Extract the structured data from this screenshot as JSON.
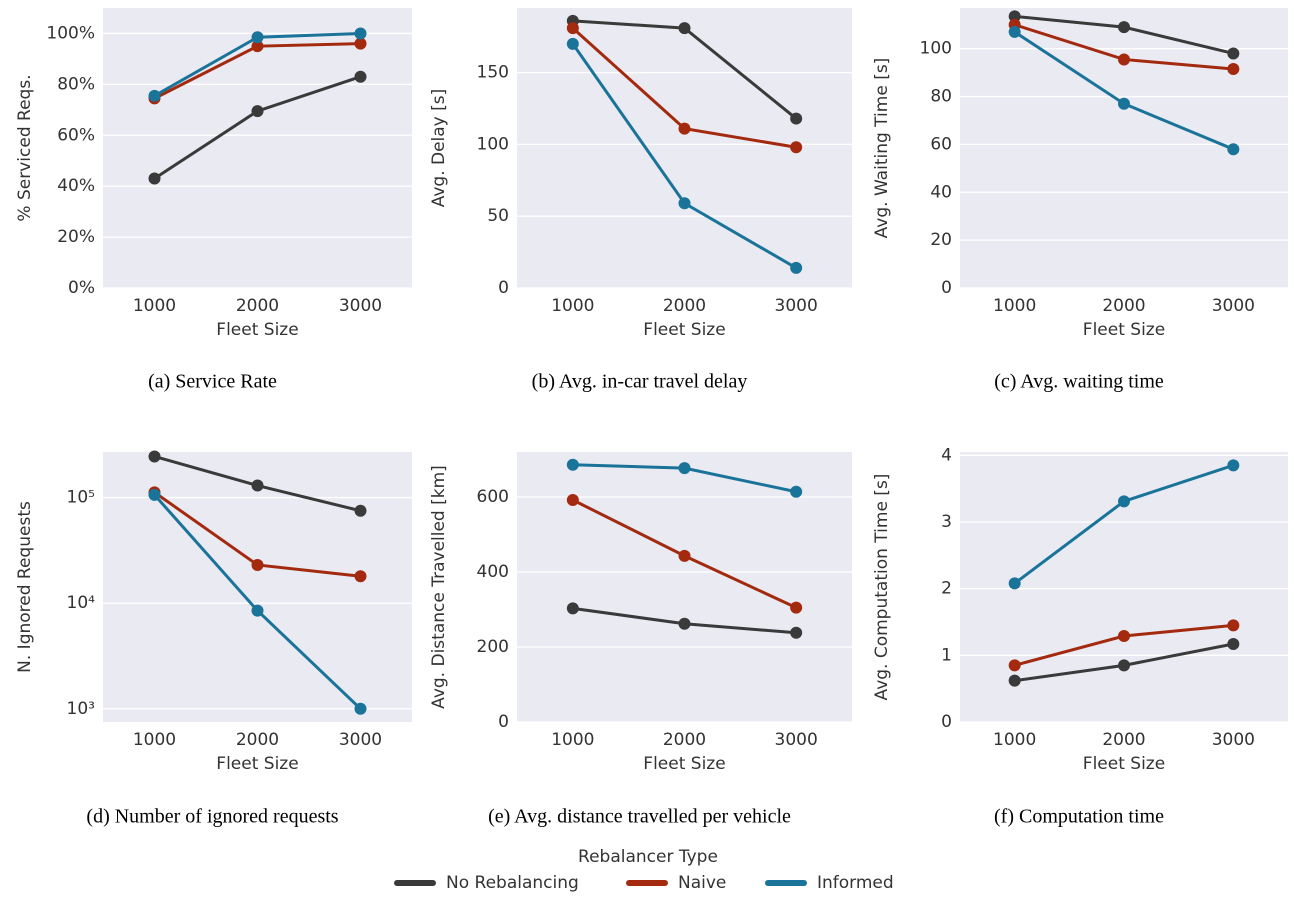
{
  "chart_data": [
    {
      "type": "line",
      "caption": "(a) Service Rate",
      "x_label": "Fleet Size",
      "y_label": "% Serviced Reqs.",
      "categories": [
        "1000",
        "2000",
        "3000"
      ],
      "ylim": [
        0,
        110
      ],
      "yticks": [
        {
          "value": 0,
          "label": "0%"
        },
        {
          "value": 20,
          "label": "20%"
        },
        {
          "value": 40,
          "label": "40%"
        },
        {
          "value": 60,
          "label": "60%"
        },
        {
          "value": 80,
          "label": "80%"
        },
        {
          "value": 100,
          "label": "100%"
        }
      ],
      "grid": true,
      "series": [
        {
          "name": "No Rebalancing",
          "color": "#3a3a3a",
          "values": [
            43,
            69.5,
            83
          ]
        },
        {
          "name": "Naive",
          "color": "#a32a0f",
          "values": [
            74.5,
            95,
            96
          ]
        },
        {
          "name": "Informed",
          "color": "#1a7399",
          "values": [
            75.5,
            98.5,
            100
          ]
        }
      ]
    },
    {
      "type": "line",
      "caption": "(b) Avg. in-car travel delay",
      "x_label": "Fleet Size",
      "y_label": "Avg. Delay [s]",
      "categories": [
        "1000",
        "2000",
        "3000"
      ],
      "ylim": [
        0,
        195
      ],
      "yticks": [
        0,
        50,
        100,
        150
      ],
      "grid": true,
      "series": [
        {
          "name": "No Rebalancing",
          "color": "#3a3a3a",
          "values": [
            186,
            181,
            118
          ]
        },
        {
          "name": "Naive",
          "color": "#a32a0f",
          "values": [
            181,
            111,
            98
          ]
        },
        {
          "name": "Informed",
          "color": "#1a7399",
          "values": [
            170,
            59,
            14
          ]
        }
      ]
    },
    {
      "type": "line",
      "caption": "(c) Avg. waiting time",
      "x_label": "Fleet Size",
      "y_label": "Avg. Waiting Time [s]",
      "categories": [
        "1000",
        "2000",
        "3000"
      ],
      "ylim": [
        0,
        117
      ],
      "yticks": [
        0,
        20,
        40,
        60,
        80,
        100
      ],
      "grid": true,
      "series": [
        {
          "name": "No Rebalancing",
          "color": "#3a3a3a",
          "values": [
            113.5,
            109,
            98
          ]
        },
        {
          "name": "Naive",
          "color": "#a32a0f",
          "values": [
            110,
            95.5,
            91.5
          ]
        },
        {
          "name": "Informed",
          "color": "#1a7399",
          "values": [
            107,
            77,
            58
          ]
        }
      ]
    },
    {
      "type": "line",
      "caption": "(d) Number of ignored requests",
      "x_label": "Fleet Size",
      "y_label": "N. Ignored Requests",
      "categories": [
        "1000",
        "2000",
        "3000"
      ],
      "log_scale": true,
      "ylim": [
        750,
        270000
      ],
      "yticks": [
        {
          "value": 1000,
          "label": "10³"
        },
        {
          "value": 10000,
          "label": "10⁴"
        },
        {
          "value": 100000,
          "label": "10⁵"
        }
      ],
      "grid": true,
      "series": [
        {
          "name": "No Rebalancing",
          "color": "#3a3a3a",
          "values": [
            245000,
            130000,
            75000
          ]
        },
        {
          "name": "Naive",
          "color": "#a32a0f",
          "values": [
            112000,
            23000,
            18000
          ]
        },
        {
          "name": "Informed",
          "color": "#1a7399",
          "values": [
            106000,
            8500,
            1000
          ]
        }
      ]
    },
    {
      "type": "line",
      "caption": "(e) Avg. distance travelled per vehicle",
      "x_label": "Fleet Size",
      "y_label": "Avg. Distance Travelled [km]",
      "categories": [
        "1000",
        "2000",
        "3000"
      ],
      "ylim": [
        0,
        720
      ],
      "yticks": [
        0,
        200,
        400,
        600
      ],
      "grid": true,
      "series": [
        {
          "name": "No Rebalancing",
          "color": "#3a3a3a",
          "values": [
            303,
            262,
            238
          ]
        },
        {
          "name": "Naive",
          "color": "#a32a0f",
          "values": [
            592,
            443,
            305
          ]
        },
        {
          "name": "Informed",
          "color": "#1a7399",
          "values": [
            686,
            677,
            614
          ]
        }
      ]
    },
    {
      "type": "line",
      "caption": "(f) Computation time",
      "x_label": "Fleet Size",
      "y_label": "Avg. Computation Time [s]",
      "categories": [
        "1000",
        "2000",
        "3000"
      ],
      "ylim": [
        0,
        4.05
      ],
      "yticks": [
        0,
        1,
        2,
        3,
        4
      ],
      "grid": true,
      "series": [
        {
          "name": "No Rebalancing",
          "color": "#3a3a3a",
          "values": [
            0.62,
            0.85,
            1.17
          ]
        },
        {
          "name": "Naive",
          "color": "#a32a0f",
          "values": [
            0.85,
            1.29,
            1.45
          ]
        },
        {
          "name": "Informed",
          "color": "#1a7399",
          "values": [
            2.08,
            3.31,
            3.85
          ]
        }
      ]
    }
  ],
  "legend_title": "Rebalancer Type"
}
